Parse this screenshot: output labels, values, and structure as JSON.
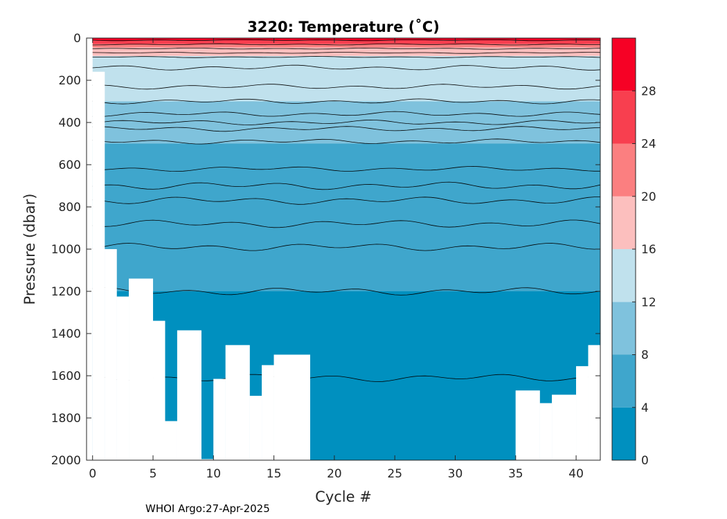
{
  "chart_data": {
    "type": "heatmap",
    "title": "3220:  Temperature (˚C)",
    "xlabel": "Cycle #",
    "ylabel": "Pressure (dbar)",
    "xlim": [
      -0.5,
      42
    ],
    "ylim": [
      0,
      2000
    ],
    "y_reversed": true,
    "xticks": [
      "0",
      "5",
      "10",
      "15",
      "20",
      "25",
      "30",
      "35",
      "40"
    ],
    "xtick_values": [
      0,
      5,
      10,
      15,
      20,
      25,
      30,
      35,
      40
    ],
    "yticks": [
      "0",
      "200",
      "400",
      "600",
      "800",
      "1000",
      "1200",
      "1400",
      "1600",
      "1800",
      "2000"
    ],
    "ytick_values": [
      0,
      200,
      400,
      600,
      800,
      1000,
      1200,
      1400,
      1600,
      1800,
      2000
    ],
    "colorbar": {
      "levels": [
        0,
        4,
        8,
        12,
        16,
        20,
        24,
        28,
        32
      ],
      "colors": [
        "#0090bf",
        "#3fa6cc",
        "#7fc2dd",
        "#c0e1ed",
        "#fcbfbe",
        "#fb7f80",
        "#f83f4f",
        "#f60125"
      ],
      "tick_labels": [
        "0",
        "4",
        "8",
        "12",
        "16",
        "20",
        "24",
        "28"
      ],
      "tick_values": [
        0,
        4,
        8,
        12,
        16,
        20,
        24,
        28
      ]
    },
    "band_boundaries_dbar": [
      {
        "temp": 28,
        "depth": 12
      },
      {
        "temp": 24,
        "depth": 28
      },
      {
        "temp": 20,
        "depth": 45
      },
      {
        "temp": 16,
        "depth": 85
      },
      {
        "temp": 12,
        "depth": 300
      },
      {
        "temp": 8,
        "depth": 500
      },
      {
        "temp": 4,
        "depth": 1200
      }
    ],
    "contour_depths_dbar": [
      10,
      30,
      50,
      70,
      90,
      140,
      230,
      300,
      360,
      400,
      430,
      490,
      620,
      700,
      770,
      880,
      990,
      1200,
      1610
    ],
    "profile_max_pressure": [
      {
        "cycle": 1,
        "max_p": 1000
      },
      {
        "cycle": 2,
        "max_p": 1225
      },
      {
        "cycle": 3,
        "max_p": 1140
      },
      {
        "cycle": 5,
        "max_p": 1340
      },
      {
        "cycle": 6,
        "max_p": 1815
      },
      {
        "cycle": 7,
        "max_p": 1385
      },
      {
        "cycle": 9,
        "max_p": 1995
      },
      {
        "cycle": 10,
        "max_p": 1615
      },
      {
        "cycle": 11,
        "max_p": 1455
      },
      {
        "cycle": 13,
        "max_p": 1695
      },
      {
        "cycle": 14,
        "max_p": 1550
      },
      {
        "cycle": 15,
        "max_p": 1500
      },
      {
        "cycle": 18,
        "max_p": 2000
      },
      {
        "cycle": 35,
        "max_p": 1670
      },
      {
        "cycle": 37,
        "max_p": 1730
      },
      {
        "cycle": 38,
        "max_p": 1690
      },
      {
        "cycle": 40,
        "max_p": 1555
      },
      {
        "cycle": 41,
        "max_p": 1455
      }
    ]
  },
  "footer": "WHOI Argo:27-Apr-2025"
}
